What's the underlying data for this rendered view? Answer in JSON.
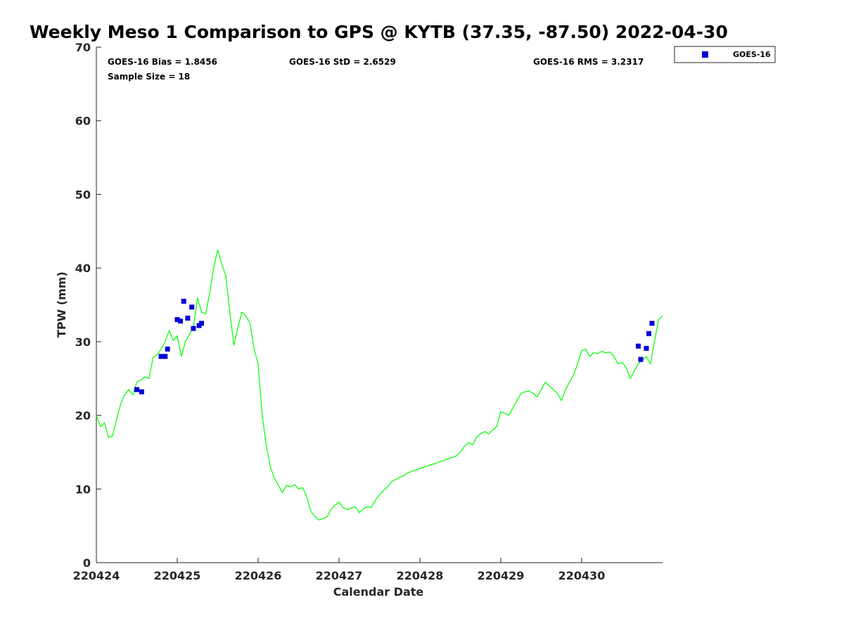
{
  "chart_data": {
    "type": "line",
    "title": "Weekly Meso 1 Comparison to GPS @ KYTB (37.35, -87.50) 2022-04-30",
    "xlabel": "Calendar Date",
    "ylabel": "TPW (mm)",
    "xlim": [
      0,
      7
    ],
    "ylim": [
      0,
      70
    ],
    "x_tick_values": [
      0,
      1,
      2,
      3,
      4,
      5,
      6
    ],
    "x_tick_labels": [
      "220424",
      "220425",
      "220426",
      "220427",
      "220428",
      "220429",
      "220430"
    ],
    "y_ticks": [
      0,
      10,
      20,
      30,
      40,
      50,
      60,
      70
    ],
    "x_unit": "days since 220424",
    "grid": false,
    "legend_position": "top-right",
    "stats": {
      "bias": "GOES-16 Bias = 1.8456",
      "std": "GOES-16 StD = 2.6529",
      "rms": "GOES-16 RMS = 3.2317",
      "sample": "Sample Size = 18"
    },
    "series": [
      {
        "name": "GPS",
        "kind": "line",
        "color": "#00ff00",
        "x": [
          0.0,
          0.05,
          0.1,
          0.15,
          0.2,
          0.25,
          0.3,
          0.35,
          0.4,
          0.45,
          0.5,
          0.55,
          0.6,
          0.65,
          0.7,
          0.75,
          0.8,
          0.85,
          0.9,
          0.95,
          1.0,
          1.05,
          1.1,
          1.15,
          1.2,
          1.25,
          1.3,
          1.35,
          1.4,
          1.45,
          1.5,
          1.55,
          1.6,
          1.65,
          1.7,
          1.75,
          1.8,
          1.85,
          1.9,
          1.95,
          2.0,
          2.05,
          2.1,
          2.15,
          2.2,
          2.25,
          2.3,
          2.35,
          2.4,
          2.45,
          2.5,
          2.55,
          2.6,
          2.65,
          2.7,
          2.75,
          2.8,
          2.85,
          2.9,
          2.95,
          3.0,
          3.05,
          3.1,
          3.15,
          3.2,
          3.25,
          3.3,
          3.35,
          3.4,
          3.45,
          3.5,
          3.55,
          3.6,
          3.65,
          3.7,
          3.75,
          3.8,
          3.85,
          4.0,
          4.2,
          4.45,
          4.5,
          4.55,
          4.6,
          4.65,
          4.7,
          4.75,
          4.8,
          4.85,
          4.9,
          4.95,
          5.0,
          5.05,
          5.1,
          5.15,
          5.2,
          5.25,
          5.3,
          5.35,
          5.4,
          5.45,
          5.5,
          5.55,
          5.6,
          5.65,
          5.7,
          5.75,
          5.8,
          5.85,
          5.9,
          5.95,
          6.0,
          6.05,
          6.1,
          6.15,
          6.2,
          6.25,
          6.3,
          6.35,
          6.4,
          6.45,
          6.5,
          6.55,
          6.6,
          6.65,
          6.7,
          6.75,
          6.8,
          6.85,
          6.9,
          6.95,
          7.0
        ],
        "y": [
          20.0,
          18.5,
          19.0,
          17.0,
          17.2,
          19.5,
          21.5,
          22.8,
          23.5,
          22.8,
          24.5,
          24.8,
          25.2,
          25.0,
          27.8,
          28.2,
          29.0,
          30.0,
          31.5,
          30.2,
          30.8,
          28.0,
          30.0,
          31.0,
          32.0,
          36.0,
          34.0,
          33.8,
          36.5,
          40.0,
          42.5,
          40.5,
          39.0,
          34.0,
          29.5,
          32.0,
          34.0,
          33.5,
          32.5,
          29.0,
          27.0,
          20.0,
          16.0,
          13.0,
          11.5,
          10.5,
          9.5,
          10.5,
          10.3,
          10.6,
          10.0,
          10.2,
          9.0,
          7.0,
          6.3,
          5.8,
          6.0,
          6.2,
          7.2,
          7.8,
          8.2,
          7.5,
          7.2,
          7.4,
          7.6,
          6.8,
          7.3,
          7.6,
          7.5,
          8.5,
          9.2,
          9.8,
          10.3,
          11.0,
          11.3,
          11.6,
          11.8,
          12.2,
          12.8,
          13.5,
          14.5,
          15.0,
          15.8,
          16.3,
          16.0,
          17.0,
          17.5,
          17.8,
          17.5,
          18.0,
          18.5,
          20.5,
          20.3,
          20.0,
          21.0,
          22.0,
          23.0,
          23.2,
          23.3,
          23.0,
          22.5,
          23.5,
          24.5,
          24.0,
          23.5,
          23.0,
          22.0,
          23.5,
          24.5,
          25.5,
          27.0,
          28.8,
          29.0,
          28.0,
          28.5,
          28.4,
          28.7,
          28.5,
          28.6,
          28.0,
          27.0,
          27.2,
          26.5,
          25.0,
          26.0,
          27.0,
          27.5,
          28.0,
          27.0,
          30.0,
          33.0,
          33.5
        ]
      },
      {
        "name": "GOES-16",
        "kind": "scatter",
        "color": "#0000d8",
        "x": [
          0.5,
          0.56,
          0.8,
          0.85,
          0.88,
          1.0,
          1.04,
          1.08,
          1.13,
          1.18,
          1.2,
          1.27,
          1.3,
          6.7,
          6.73,
          6.8,
          6.83,
          6.87
        ],
        "y": [
          23.5,
          23.2,
          28.0,
          28.0,
          29.0,
          33.0,
          32.8,
          35.5,
          33.2,
          34.7,
          31.8,
          32.2,
          32.5,
          29.4,
          27.6,
          29.1,
          31.1,
          32.5
        ]
      }
    ]
  }
}
